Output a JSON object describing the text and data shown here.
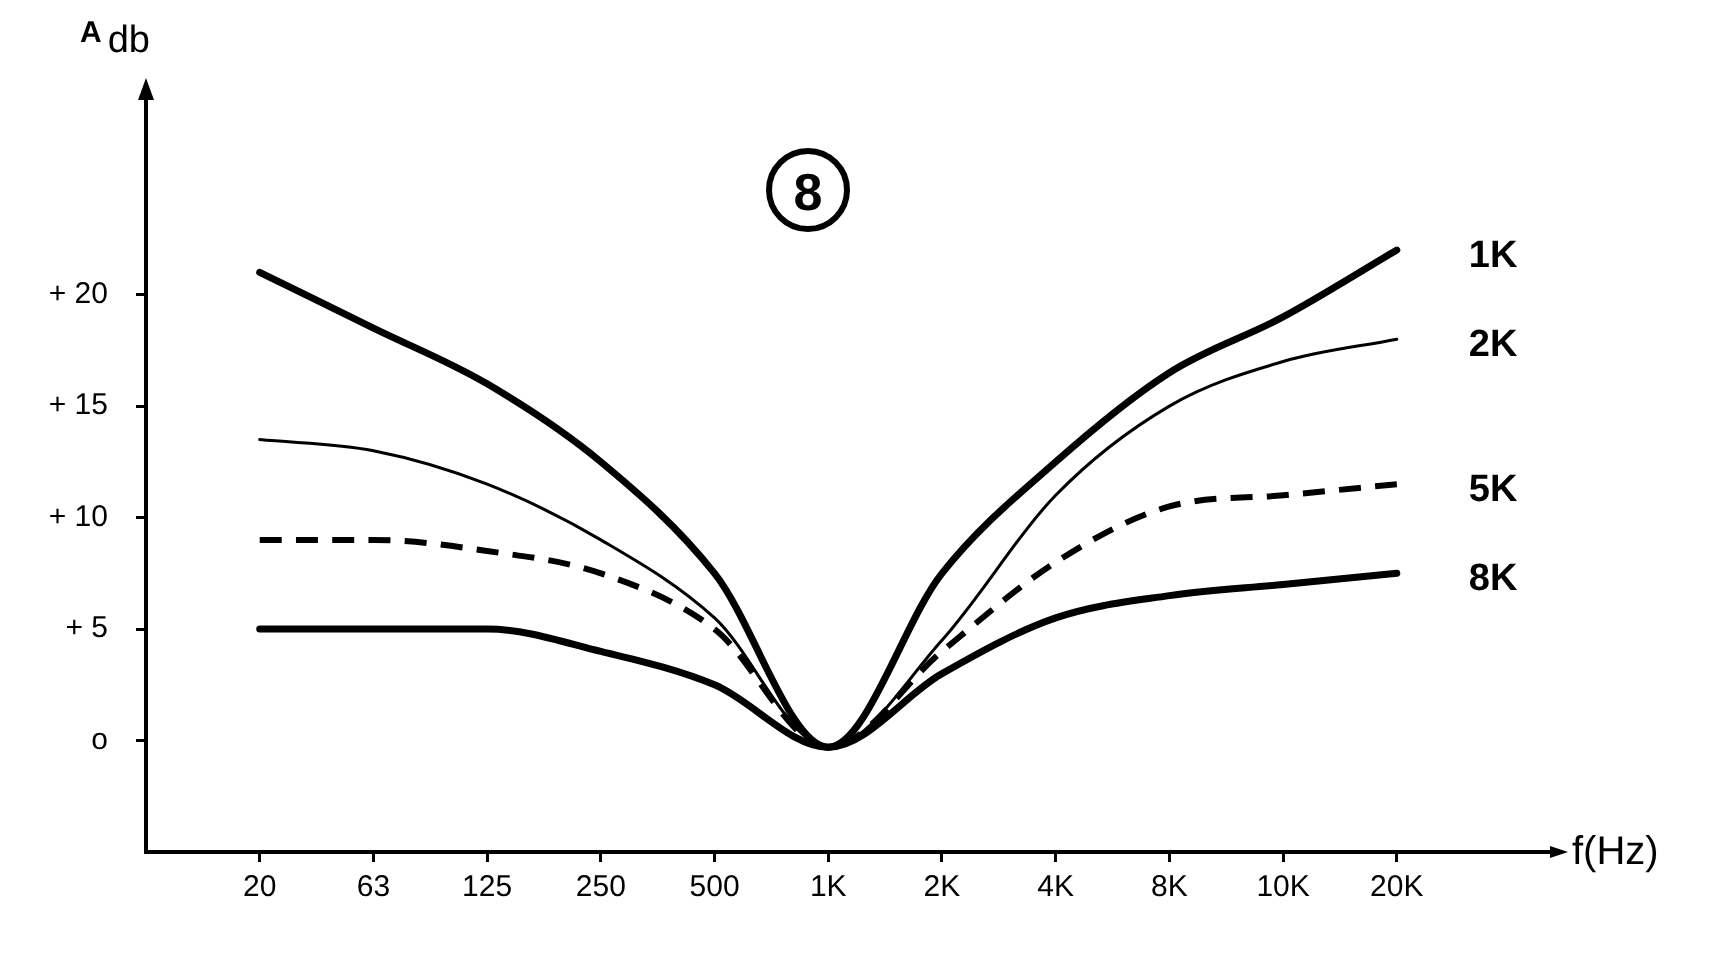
{
  "chart_data": {
    "type": "line",
    "title": "8",
    "xlabel": "f(Hz)",
    "ylabel": "A$_{db}$",
    "categories": [
      "20",
      "63",
      "125",
      "250",
      "500",
      "1K",
      "2K",
      "4K",
      "8K",
      "10K",
      "20K"
    ],
    "series": [
      {
        "name": "1K",
        "color": "#000000",
        "values": [
          21,
          18.5,
          16,
          12.5,
          7.5,
          -0.3,
          7.5,
          12.5,
          16.5,
          19,
          22
        ]
      },
      {
        "name": "2K",
        "color": "#000000",
        "values": [
          13.5,
          13,
          11.5,
          9,
          5.5,
          -0.3,
          4.5,
          11,
          15,
          17,
          18
        ]
      },
      {
        "name": "5K",
        "color": "#000000",
        "line_style": "dashed",
        "values": [
          9,
          9,
          8.5,
          7.5,
          5,
          -0.3,
          4,
          8,
          10.5,
          11,
          11.5
        ]
      },
      {
        "name": "8K",
        "color": "#000000",
        "values": [
          5,
          5,
          5,
          4,
          2.5,
          -0.3,
          3,
          5.5,
          6.5,
          7,
          7.5
        ]
      }
    ],
    "ylim": [
      -5,
      29
    ],
    "yticks": [
      {
        "value": 0,
        "label": "o"
      },
      {
        "value": 5,
        "label": "+ 5"
      },
      {
        "value": 10,
        "label": "+ 10"
      },
      {
        "value": 15,
        "label": "+ 15"
      },
      {
        "value": 20,
        "label": "+ 20"
      }
    ],
    "marker": "none",
    "line_style": "solid"
  }
}
